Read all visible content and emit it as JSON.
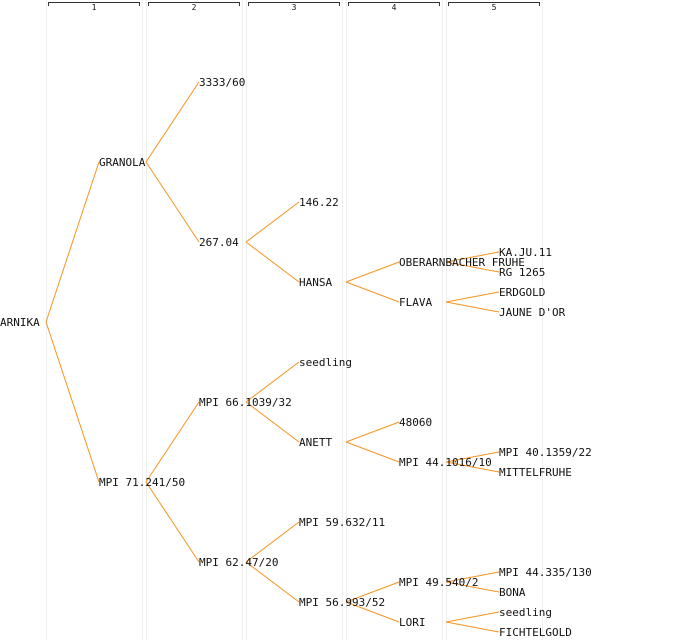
{
  "generations": [
    "1",
    "2",
    "3",
    "4",
    "5"
  ],
  "colors": {
    "edge": "#f7931e",
    "column": "#eeeeee",
    "text": "#111111",
    "bracket": "#333333"
  },
  "tree": {
    "root": "ARNIKA",
    "nodes": {
      "n0": "ARNIKA",
      "n1": "GRANOLA",
      "n2": "MPI 71.241/50",
      "n3": "3333/60",
      "n4": "267.04",
      "n5": "MPI 66.1039/32",
      "n6": "MPI 62.47/20",
      "n7": "146.22",
      "n8": "HANSA",
      "n9": "seedling",
      "n10": "ANETT",
      "n11": "MPI 59.632/11",
      "n12": "MPI 56.993/52",
      "n13": "OBERARNBACHER FRUHE",
      "n14": "FLAVA",
      "n15": "48060",
      "n16": "MPI 44.1016/10",
      "n17": "MPI 49.540/2",
      "n18": "LORI",
      "n19": "KA.JU.11",
      "n20": "RG 1265",
      "n21": "ERDGOLD",
      "n22": "JAUNE D'OR",
      "n23": "MPI 40.1359/22",
      "n24": "MITTELFRUHE",
      "n25": "MPI 44.335/130",
      "n26": "BONA",
      "n27": "seedling",
      "n28": "FICHTELGOLD"
    }
  }
}
